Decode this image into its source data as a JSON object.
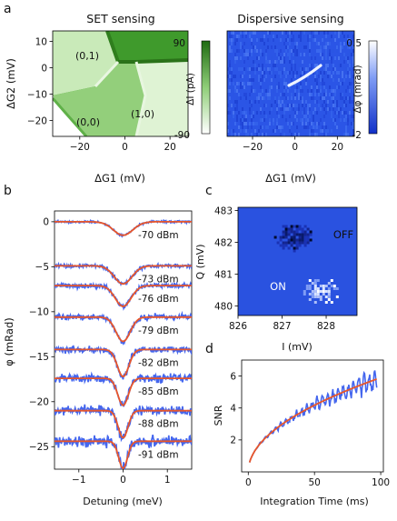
{
  "chart_data": [
    {
      "panel": "a",
      "title": "SET sensing",
      "type": "heatmap",
      "xlabel": "ΔG1 (mV)",
      "ylabel": "ΔG2 (mV)",
      "xlim": [
        -32,
        28
      ],
      "ylim": [
        -26,
        14
      ],
      "xticks": [
        -20,
        0,
        20
      ],
      "yticks": [
        -20,
        -10,
        0,
        10
      ],
      "colorbar": {
        "label": "ΔI (pA)",
        "min": -90,
        "max": 90,
        "ticks": [
          90,
          -90
        ]
      },
      "annotations": [
        "(0,1)",
        "(1,0)",
        "(0,0)"
      ]
    },
    {
      "panel": "a",
      "title": "Dispersive sensing",
      "type": "heatmap",
      "xlabel": "ΔG1 (mV)",
      "xlim": [
        -32,
        28
      ],
      "ylim": [
        -26,
        14
      ],
      "xticks": [
        -20,
        0,
        20
      ],
      "colorbar": {
        "label": "Δφ (mrad)",
        "min": -2.0,
        "max": 0.5,
        "ticks": [
          0.5,
          -2.0
        ]
      }
    },
    {
      "panel": "b",
      "type": "line",
      "xlabel": "Detuning (meV)",
      "ylabel": "φ (mRad)",
      "xlim": [
        -1.55,
        1.55
      ],
      "ylim": [
        -27.5,
        1.2
      ],
      "xticks": [
        -1,
        0,
        1
      ],
      "yticks": [
        0,
        -5,
        -10,
        -15,
        -20,
        -25
      ],
      "series": [
        {
          "name": "-70 dBm",
          "offset": 0,
          "depth": 1.5,
          "width": 0.22
        },
        {
          "name": "-73 dBm",
          "offset": -4.9,
          "depth": 2.0,
          "width": 0.2
        },
        {
          "name": "-76 dBm",
          "offset": -7.1,
          "depth": 2.3,
          "width": 0.18
        },
        {
          "name": "-79 dBm",
          "offset": -10.6,
          "depth": 2.7,
          "width": 0.16
        },
        {
          "name": "-82 dBm",
          "offset": -14.2,
          "depth": 3.0,
          "width": 0.13
        },
        {
          "name": "-85 dBm",
          "offset": -17.4,
          "depth": 3.0,
          "width": 0.12
        },
        {
          "name": "-88 dBm",
          "offset": -21.0,
          "depth": 3.0,
          "width": 0.11
        },
        {
          "name": "-91 dBm",
          "offset": -24.4,
          "depth": 3.0,
          "width": 0.1
        }
      ],
      "colors": {
        "data": "#4466ee",
        "fit": "#e8562a"
      }
    },
    {
      "panel": "c",
      "type": "heatmap",
      "xlabel": "I (mV)",
      "ylabel": "Q (mV)",
      "xlim": [
        826,
        828.7
      ],
      "ylim": [
        479.7,
        483.1
      ],
      "xticks": [
        826,
        827,
        828
      ],
      "yticks": [
        480,
        481,
        482,
        483
      ],
      "annotations": [
        "OFF",
        "ON"
      ],
      "clusters": [
        {
          "label": "OFF",
          "i": 827.25,
          "q": 482.2,
          "color": "#000a2e"
        },
        {
          "label": "ON",
          "i": 827.85,
          "q": 480.5,
          "color": "#ffffff"
        }
      ],
      "background": "#2a52e0"
    },
    {
      "panel": "d",
      "type": "line",
      "xlabel": "Integration Time (ms)",
      "ylabel": "SNR",
      "xlim": [
        -5,
        102
      ],
      "ylim": [
        0,
        7
      ],
      "xticks": [
        0,
        50,
        100
      ],
      "yticks": [
        2,
        4,
        6
      ],
      "fit": {
        "model": "a*sqrt(t)",
        "a": 0.59
      },
      "colors": {
        "data": "#4466ee",
        "fit": "#e8562a"
      }
    }
  ],
  "panel_labels": {
    "a": "a",
    "b": "b",
    "c": "c",
    "d": "d"
  }
}
